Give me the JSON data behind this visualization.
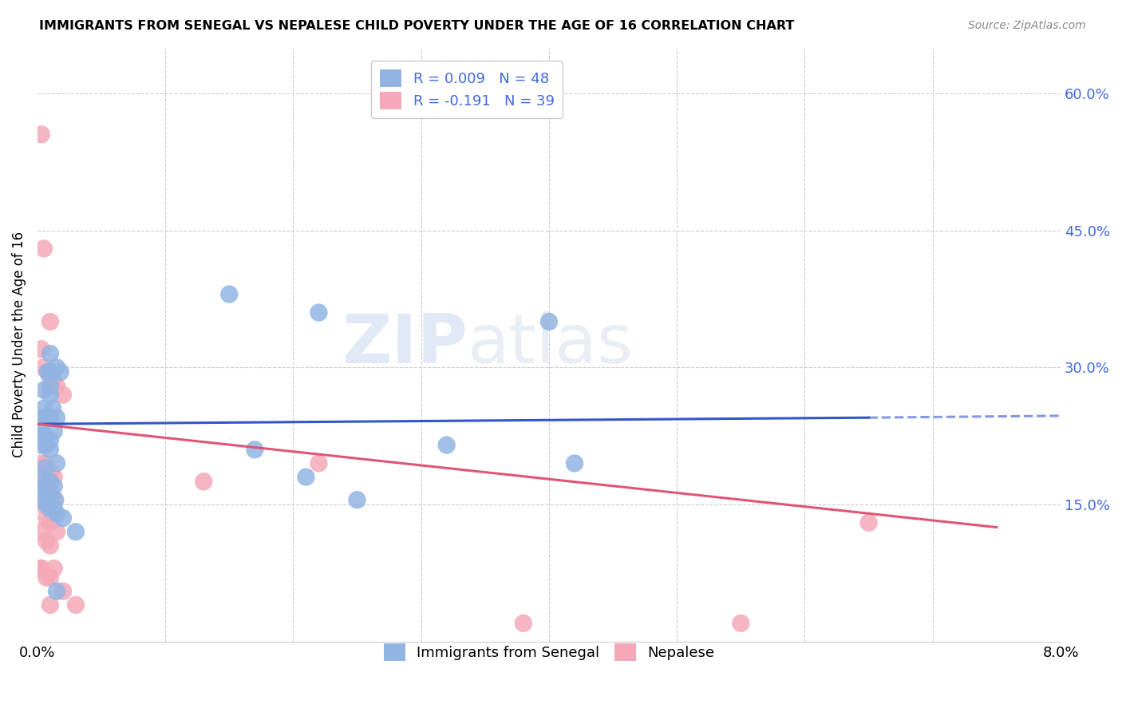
{
  "title": "IMMIGRANTS FROM SENEGAL VS NEPALESE CHILD POVERTY UNDER THE AGE OF 16 CORRELATION CHART",
  "source": "Source: ZipAtlas.com",
  "ylabel": "Child Poverty Under the Age of 16",
  "y_tick_labels": [
    "15.0%",
    "30.0%",
    "45.0%",
    "60.0%"
  ],
  "y_tick_values": [
    0.15,
    0.3,
    0.45,
    0.6
  ],
  "xlim": [
    0.0,
    0.08
  ],
  "ylim": [
    0.0,
    0.65
  ],
  "watermark_zip": "ZIP",
  "watermark_atlas": "atlas",
  "blue_color": "#92b4e3",
  "pink_color": "#f4a8b8",
  "blue_line_color": "#3355cc",
  "pink_line_color": "#e05575",
  "grid_color": "#cccccc",
  "blue_scatter": [
    [
      0.0003,
      0.245
    ],
    [
      0.0005,
      0.275
    ],
    [
      0.0008,
      0.295
    ],
    [
      0.001,
      0.295
    ],
    [
      0.001,
      0.315
    ],
    [
      0.001,
      0.28
    ],
    [
      0.001,
      0.27
    ],
    [
      0.0012,
      0.295
    ],
    [
      0.0015,
      0.3
    ],
    [
      0.0018,
      0.295
    ],
    [
      0.0003,
      0.235
    ],
    [
      0.0005,
      0.255
    ],
    [
      0.0008,
      0.245
    ],
    [
      0.001,
      0.245
    ],
    [
      0.0012,
      0.255
    ],
    [
      0.0015,
      0.245
    ],
    [
      0.0003,
      0.225
    ],
    [
      0.0006,
      0.225
    ],
    [
      0.001,
      0.22
    ],
    [
      0.0013,
      0.23
    ],
    [
      0.0003,
      0.215
    ],
    [
      0.0007,
      0.215
    ],
    [
      0.001,
      0.21
    ],
    [
      0.0015,
      0.195
    ],
    [
      0.0003,
      0.18
    ],
    [
      0.0006,
      0.19
    ],
    [
      0.001,
      0.175
    ],
    [
      0.0013,
      0.17
    ],
    [
      0.0003,
      0.165
    ],
    [
      0.0007,
      0.17
    ],
    [
      0.001,
      0.16
    ],
    [
      0.0014,
      0.155
    ],
    [
      0.0003,
      0.155
    ],
    [
      0.0007,
      0.15
    ],
    [
      0.001,
      0.145
    ],
    [
      0.0013,
      0.145
    ],
    [
      0.0015,
      0.14
    ],
    [
      0.002,
      0.135
    ],
    [
      0.017,
      0.21
    ],
    [
      0.021,
      0.18
    ],
    [
      0.025,
      0.155
    ],
    [
      0.015,
      0.38
    ],
    [
      0.022,
      0.36
    ],
    [
      0.0015,
      0.055
    ],
    [
      0.032,
      0.215
    ],
    [
      0.04,
      0.35
    ],
    [
      0.042,
      0.195
    ],
    [
      0.003,
      0.12
    ]
  ],
  "pink_scatter": [
    [
      0.0003,
      0.555
    ],
    [
      0.0005,
      0.43
    ],
    [
      0.001,
      0.35
    ],
    [
      0.0008,
      0.295
    ],
    [
      0.001,
      0.29
    ],
    [
      0.0012,
      0.285
    ],
    [
      0.0015,
      0.28
    ],
    [
      0.002,
      0.27
    ],
    [
      0.0003,
      0.32
    ],
    [
      0.0005,
      0.3
    ],
    [
      0.0003,
      0.195
    ],
    [
      0.0007,
      0.195
    ],
    [
      0.001,
      0.185
    ],
    [
      0.0013,
      0.18
    ],
    [
      0.0003,
      0.175
    ],
    [
      0.0007,
      0.17
    ],
    [
      0.001,
      0.165
    ],
    [
      0.0013,
      0.155
    ],
    [
      0.0003,
      0.15
    ],
    [
      0.0007,
      0.135
    ],
    [
      0.001,
      0.13
    ],
    [
      0.0015,
      0.12
    ],
    [
      0.0003,
      0.12
    ],
    [
      0.0007,
      0.11
    ],
    [
      0.001,
      0.105
    ],
    [
      0.0013,
      0.08
    ],
    [
      0.0003,
      0.08
    ],
    [
      0.0007,
      0.07
    ],
    [
      0.001,
      0.04
    ],
    [
      0.002,
      0.055
    ],
    [
      0.003,
      0.04
    ],
    [
      0.0003,
      0.08
    ],
    [
      0.001,
      0.07
    ],
    [
      0.013,
      0.175
    ],
    [
      0.022,
      0.195
    ],
    [
      0.038,
      0.02
    ],
    [
      0.055,
      0.02
    ],
    [
      0.065,
      0.13
    ]
  ],
  "blue_trendline": [
    [
      0.0,
      0.238
    ],
    [
      0.065,
      0.245
    ]
  ],
  "blue_trendline_dash": [
    [
      0.065,
      0.245
    ],
    [
      0.08,
      0.247
    ]
  ],
  "pink_trendline": [
    [
      0.0,
      0.238
    ],
    [
      0.075,
      0.125
    ]
  ]
}
